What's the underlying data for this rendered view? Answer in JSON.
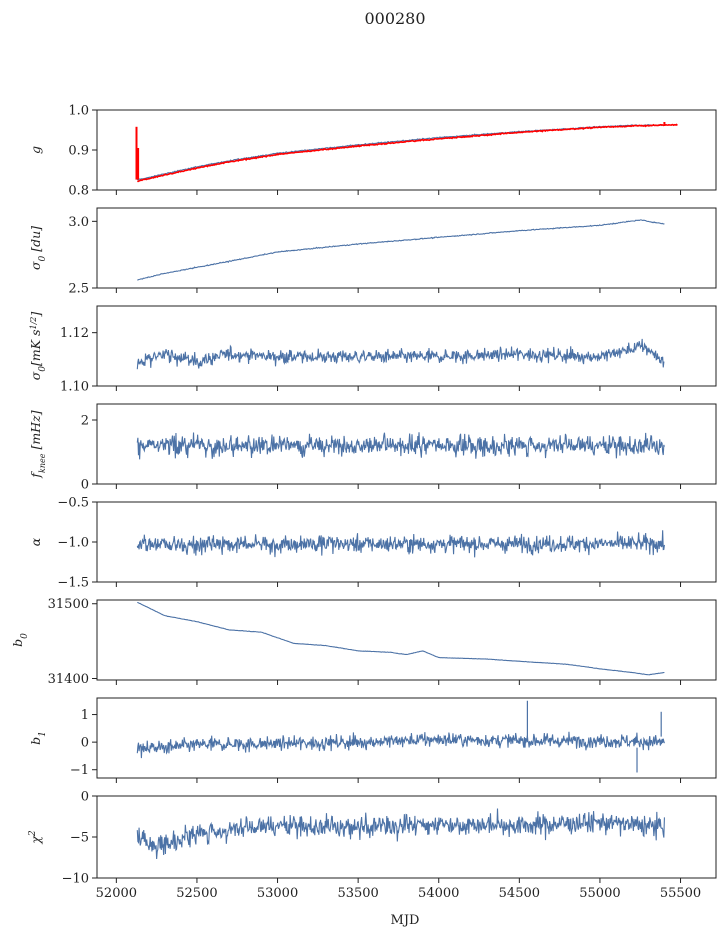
{
  "figure": {
    "title": "000280",
    "xlabel": "MJD"
  },
  "colors": {
    "series": "#4c72a6",
    "overlay": "#ff0000",
    "axes": "#222222"
  },
  "chart_data": [
    {
      "type": "line",
      "ylabel": "g",
      "ylim": [
        0.8,
        1.0
      ],
      "yticks": [
        0.8,
        0.9,
        1.0
      ],
      "ytick_labels": [
        "0.8",
        "0.9",
        "1.0"
      ],
      "series": [
        {
          "shape": "trend",
          "points": [
            [
              52130,
              0.826
            ],
            [
              52150,
              0.827
            ],
            [
              52250,
              0.836
            ],
            [
              52500,
              0.858
            ],
            [
              52700,
              0.873
            ],
            [
              53000,
              0.892
            ],
            [
              53500,
              0.913
            ],
            [
              54000,
              0.931
            ],
            [
              54500,
              0.946
            ],
            [
              55000,
              0.958
            ],
            [
              55200,
              0.962
            ],
            [
              55400,
              0.962
            ]
          ],
          "noise": 0.0015,
          "color": "#4c72a6"
        },
        {
          "shape": "trend",
          "points": [
            [
              52130,
              0.822
            ],
            [
              52150,
              0.824
            ],
            [
              52250,
              0.833
            ],
            [
              52500,
              0.855
            ],
            [
              52700,
              0.87
            ],
            [
              53000,
              0.889
            ],
            [
              53500,
              0.91
            ],
            [
              54000,
              0.928
            ],
            [
              54500,
              0.944
            ],
            [
              55000,
              0.957
            ],
            [
              55200,
              0.96
            ],
            [
              55480,
              0.963
            ]
          ],
          "noise": 0.0015,
          "color": "#ff0000",
          "spikes": [
            [
              52125,
              0.826,
              0.958
            ],
            [
              52135,
              0.826,
              0.905
            ],
            [
              55400,
              0.96,
              0.97
            ]
          ]
        }
      ]
    },
    {
      "type": "line",
      "ylabel": "σ0 [du]",
      "ylim": [
        2.5,
        3.1
      ],
      "yticks": [
        2.5,
        3.0
      ],
      "ytick_labels": [
        "2.5",
        "3.0"
      ],
      "series": [
        {
          "shape": "trend",
          "points": [
            [
              52130,
              2.56
            ],
            [
              52300,
              2.61
            ],
            [
              52700,
              2.7
            ],
            [
              53000,
              2.77
            ],
            [
              53500,
              2.83
            ],
            [
              54000,
              2.88
            ],
            [
              54500,
              2.93
            ],
            [
              55000,
              2.97
            ],
            [
              55250,
              3.01
            ],
            [
              55400,
              2.98
            ]
          ],
          "noise": 0.004,
          "color": "#4c72a6"
        }
      ]
    },
    {
      "type": "line",
      "ylabel": "σ0 [mK s^1/2]",
      "ylim": [
        1.1,
        1.13
      ],
      "yticks": [
        1.1,
        1.12
      ],
      "ytick_labels": [
        "1.10",
        "1.12"
      ],
      "series": [
        {
          "shape": "noise",
          "points": [
            [
              52130,
              1.109
            ],
            [
              52300,
              1.112
            ],
            [
              52500,
              1.109
            ],
            [
              52700,
              1.112
            ],
            [
              53000,
              1.111
            ],
            [
              53500,
              1.111
            ],
            [
              54000,
              1.111
            ],
            [
              54500,
              1.112
            ],
            [
              55000,
              1.111
            ],
            [
              55270,
              1.115
            ],
            [
              55400,
              1.109
            ]
          ],
          "noise": 0.0018,
          "color": "#4c72a6"
        }
      ]
    },
    {
      "type": "line",
      "ylabel": "f_knee [mHz]",
      "ylim": [
        0,
        2.5
      ],
      "yticks": [
        0,
        2
      ],
      "ytick_labels": [
        "0",
        "2"
      ],
      "series": [
        {
          "shape": "noise",
          "points": [
            [
              52130,
              1.2
            ],
            [
              55400,
              1.2
            ]
          ],
          "noise": 0.22,
          "color": "#4c72a6"
        }
      ]
    },
    {
      "type": "line",
      "ylabel": "α",
      "ylim": [
        -1.5,
        -0.5
      ],
      "yticks": [
        -1.5,
        -1.0,
        -0.5
      ],
      "ytick_labels": [
        "−1.5",
        "−1.0",
        "−0.5"
      ],
      "series": [
        {
          "shape": "noise",
          "points": [
            [
              52130,
              -1.03
            ],
            [
              55400,
              -1.02
            ]
          ],
          "noise": 0.075,
          "color": "#4c72a6"
        }
      ]
    },
    {
      "type": "line",
      "ylabel": "b0",
      "ylim": [
        31398,
        31505
      ],
      "yticks": [
        31400,
        31500
      ],
      "ytick_labels": [
        "31400",
        "31500"
      ],
      "series": [
        {
          "shape": "trend",
          "points": [
            [
              52130,
              31502
            ],
            [
              52300,
              31484
            ],
            [
              52500,
              31476
            ],
            [
              52700,
              31465
            ],
            [
              52900,
              31462
            ],
            [
              53100,
              31447
            ],
            [
              53300,
              31444
            ],
            [
              53500,
              31437
            ],
            [
              53700,
              31435
            ],
            [
              53800,
              31432
            ],
            [
              53900,
              31437
            ],
            [
              54000,
              31428
            ],
            [
              54300,
              31426
            ],
            [
              54500,
              31423
            ],
            [
              54800,
              31419
            ],
            [
              55000,
              31413
            ],
            [
              55200,
              31408
            ],
            [
              55300,
              31405
            ],
            [
              55400,
              31408
            ]
          ],
          "noise": 0.3,
          "color": "#4c72a6"
        }
      ]
    },
    {
      "type": "line",
      "ylabel": "b1",
      "ylim": [
        -1.3,
        1.6
      ],
      "yticks": [
        -1,
        0,
        1
      ],
      "ytick_labels": [
        "−1",
        "0",
        "1"
      ],
      "series": [
        {
          "shape": "noise",
          "points": [
            [
              52130,
              -0.2
            ],
            [
              52300,
              -0.2
            ],
            [
              52500,
              -0.1
            ],
            [
              53000,
              -0.05
            ],
            [
              53500,
              0.0
            ],
            [
              54000,
              0.1
            ],
            [
              54500,
              0.05
            ],
            [
              55000,
              0.05
            ],
            [
              55400,
              0.0
            ]
          ],
          "noise": 0.18,
          "color": "#4c72a6",
          "spikes": [
            [
              54550,
              0.0,
              1.5
            ],
            [
              55230,
              -0.2,
              -1.1
            ],
            [
              55380,
              0.2,
              1.1
            ]
          ]
        }
      ]
    },
    {
      "type": "line",
      "ylabel": "χ²",
      "ylim": [
        -10,
        0
      ],
      "yticks": [
        -10,
        -5,
        0
      ],
      "ytick_labels": [
        "−10",
        "−5",
        "0"
      ],
      "series": [
        {
          "shape": "noise",
          "points": [
            [
              52130,
              -5
            ],
            [
              52250,
              -6
            ],
            [
              52500,
              -4.6
            ],
            [
              53000,
              -3.6
            ],
            [
              53500,
              -3.8
            ],
            [
              54000,
              -3.4
            ],
            [
              54500,
              -3.6
            ],
            [
              55000,
              -3.2
            ],
            [
              55400,
              -3.8
            ]
          ],
          "noise": 0.9,
          "color": "#4c72a6"
        }
      ]
    }
  ],
  "xaxis": {
    "lim": [
      51880,
      55720
    ],
    "ticks": [
      52000,
      52500,
      53000,
      53500,
      54000,
      54500,
      55000,
      55500
    ],
    "tick_labels": [
      "52000",
      "52500",
      "53000",
      "53500",
      "54000",
      "54500",
      "55000",
      "55500"
    ]
  }
}
